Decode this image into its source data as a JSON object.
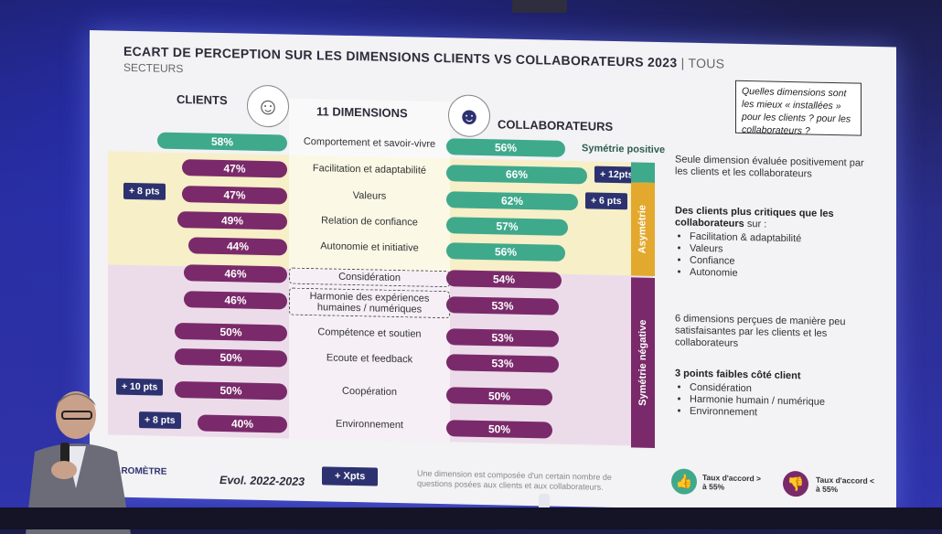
{
  "slide": {
    "title": "ECART DE PERCEPTION SUR LES DIMENSIONS CLIENTS VS COLLABORATEURS 2023",
    "title_suffix": "| TOUS",
    "subtitle": "SECTEURS",
    "question": "Quelles dimensions sont les mieux « installées » pour les clients ? pour les collaborateurs ?",
    "col_clients": "CLIENTS",
    "col_dimensions": "11 DIMENSIONS",
    "col_collab": "COLLABORATEURS",
    "sym_positive": "Symétrie positive",
    "asymetrie": "Asymétrie",
    "sym_negative": "Symétrie négative",
    "rows": [
      {
        "dim": "Comportement et savoir-vivre",
        "client": "58%",
        "collab": "56%",
        "client_w": 58,
        "collab_w": 56,
        "client_color": "teal",
        "collab_color": "teal",
        "evo_client": "",
        "evo_collab": "",
        "boxed": false
      },
      {
        "dim": "Facilitation et adaptabilité",
        "client": "47%",
        "collab": "66%",
        "client_w": 47,
        "collab_w": 66,
        "client_color": "purple",
        "collab_color": "teal",
        "evo_client": "",
        "evo_collab": "+ 12pts",
        "boxed": false
      },
      {
        "dim": "Valeurs",
        "client": "47%",
        "collab": "62%",
        "client_w": 47,
        "collab_w": 62,
        "client_color": "purple",
        "collab_color": "teal",
        "evo_client": "+ 8 pts",
        "evo_collab": "+ 6 pts",
        "boxed": false
      },
      {
        "dim": "Relation de confiance",
        "client": "49%",
        "collab": "57%",
        "client_w": 49,
        "collab_w": 57,
        "client_color": "purple",
        "collab_color": "teal",
        "evo_client": "",
        "evo_collab": "",
        "boxed": false
      },
      {
        "dim": "Autonomie et initiative",
        "client": "44%",
        "collab": "56%",
        "client_w": 44,
        "collab_w": 56,
        "client_color": "purple",
        "collab_color": "teal",
        "evo_client": "",
        "evo_collab": "",
        "boxed": false
      },
      {
        "dim": "Considération",
        "client": "46%",
        "collab": "54%",
        "client_w": 46,
        "collab_w": 54,
        "client_color": "purple",
        "collab_color": "purple",
        "evo_client": "",
        "evo_collab": "",
        "boxed": true
      },
      {
        "dim": "Harmonie des expériences humaines / numériques",
        "client": "46%",
        "collab": "53%",
        "client_w": 46,
        "collab_w": 53,
        "client_color": "purple",
        "collab_color": "purple",
        "evo_client": "",
        "evo_collab": "",
        "boxed": true
      },
      {
        "dim": "Compétence et soutien",
        "client": "50%",
        "collab": "53%",
        "client_w": 50,
        "collab_w": 53,
        "client_color": "purple",
        "collab_color": "purple",
        "evo_client": "",
        "evo_collab": "",
        "boxed": false
      },
      {
        "dim": "Ecoute et feedback",
        "client": "50%",
        "collab": "53%",
        "client_w": 50,
        "collab_w": 53,
        "client_color": "purple",
        "collab_color": "purple",
        "evo_client": "",
        "evo_collab": "",
        "boxed": false
      },
      {
        "dim": "Coopération",
        "client": "50%",
        "collab": "50%",
        "client_w": 50,
        "collab_w": 50,
        "client_color": "purple",
        "collab_color": "purple",
        "evo_client": "+ 10 pts",
        "evo_collab": "",
        "boxed": false
      },
      {
        "dim": "Environnement",
        "client": "40%",
        "collab": "50%",
        "client_w": 40,
        "collab_w": 50,
        "client_color": "purple",
        "collab_color": "purple",
        "evo_client": "+ 8 pts",
        "evo_collab": "",
        "boxed": false
      }
    ],
    "right1": "Seule dimension évaluée positivement par les clients et les collaborateurs",
    "right2_title": "Des clients plus critiques que les collaborateurs",
    "right2_suffix": "sur :",
    "right2_items": [
      "Facilitation & adaptabilité",
      "Valeurs",
      "Confiance",
      "Autonomie"
    ],
    "right3": "6 dimensions perçues de manière peu satisfaisantes par les clients et les collaborateurs",
    "right4_title": "3 points faibles côté client",
    "right4_items": [
      "Considération",
      "Harmonie humain / numérique",
      "Environnement"
    ],
    "logo": "BAROMÈTRE",
    "evol_label": "Evol. 2022-2023",
    "evol_key": "+ Xpts",
    "footer_note": "Une dimension est composée d'un certain nombre de questions posées aux clients et aux collaborateurs.",
    "legend_up": "Taux d'accord > à 55%",
    "legend_down": "Taux d'accord < à 55%",
    "colors": {
      "teal": "#3fa98c",
      "purple": "#7a2a6a",
      "gold": "#e3a92e",
      "navy": "#2c3270"
    }
  }
}
